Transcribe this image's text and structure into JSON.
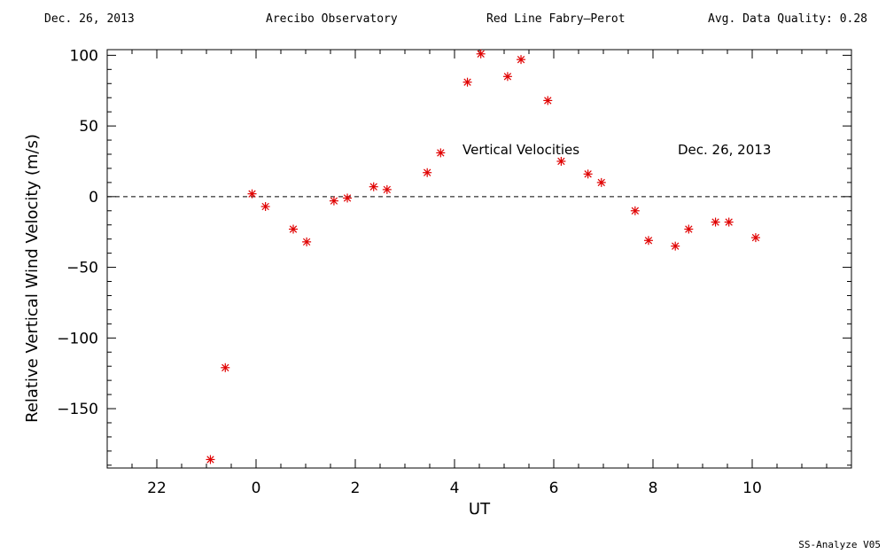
{
  "header": {
    "date": "Dec. 26, 2013",
    "site": "Arecibo Observatory",
    "instrument": "Red Line Fabry–Perot",
    "quality": "Avg. Data Quality: 0.28"
  },
  "footer": "SS-Analyze V05",
  "colors": {
    "marker": "#e00000",
    "axis": "#000000"
  },
  "chart_data": {
    "type": "scatter",
    "title": "",
    "xlabel": "UT",
    "ylabel": "Relative Vertical Wind Velocity (m/s)",
    "annotations": [
      "Vertical Velocities",
      "Dec. 26, 2013"
    ],
    "x_tick_labels": [
      "22",
      "0",
      "2",
      "4",
      "6",
      "8",
      "10"
    ],
    "y_tick_labels": [
      "100",
      "50",
      "0",
      "−50",
      "−100",
      "−150"
    ],
    "xlim": [
      -3.0,
      12.0
    ],
    "ylim": [
      -192,
      104
    ],
    "marker": "asterisk",
    "zero_line": "dashed",
    "series": [
      {
        "x": [
          -0.92,
          -0.62,
          -0.08,
          0.19,
          0.75,
          1.02,
          1.57,
          1.84,
          2.37,
          2.64,
          3.45,
          3.72,
          4.26,
          4.53,
          5.07,
          5.34,
          5.88,
          6.15,
          6.69,
          6.96,
          7.64,
          7.91,
          8.45,
          8.72,
          9.26,
          9.53,
          10.07
        ],
        "y": [
          -186,
          -121,
          2,
          -7,
          -23,
          -32,
          -3,
          -1,
          7,
          5,
          17,
          31,
          81,
          101,
          85,
          97,
          68,
          25,
          16,
          10,
          -10,
          -31,
          -35,
          -23,
          -18,
          -18,
          -29
        ]
      }
    ]
  }
}
